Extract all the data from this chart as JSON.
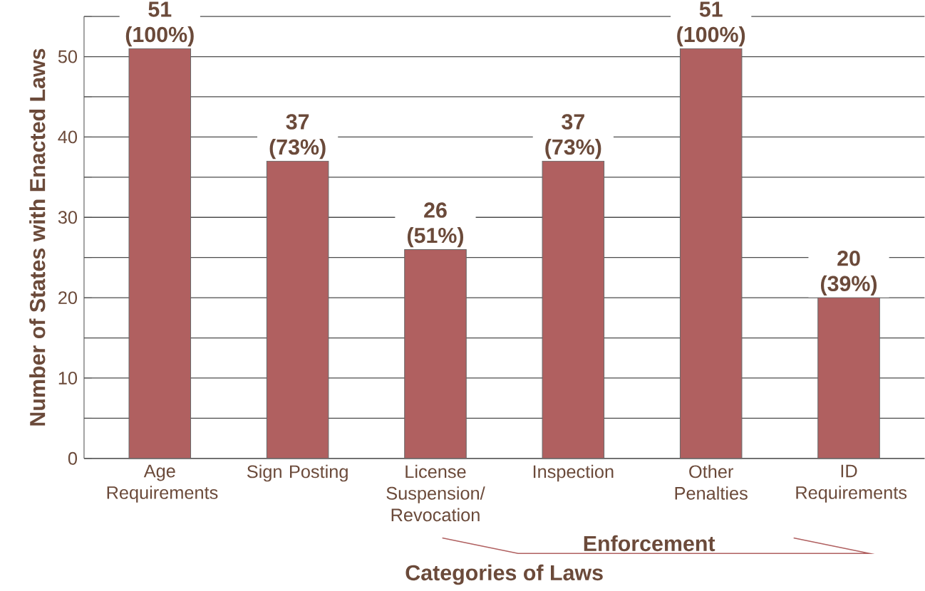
{
  "chart_data": {
    "type": "bar",
    "xlabel": "Categories of Laws",
    "ylabel": "Number of States with Enacted Laws",
    "categories": [
      "Age Requirements",
      "Sign Posting",
      "License Suspension/ Revocation",
      "Inspection",
      "Other Penalties",
      "ID Requirements"
    ],
    "values": [
      51,
      37,
      26,
      37,
      51,
      20
    ],
    "color": "#b06060",
    "value_labels": [
      "51 (100%)",
      "37 (73%)",
      "26 (51%)",
      "37 (73%)",
      "51 (100%)",
      "20 (39%)"
    ],
    "ylim": [
      0,
      55
    ],
    "yticks": [
      0,
      {
        "value": 5,
        "label": null
      },
      10,
      {
        "value": 15,
        "label": null
      },
      20,
      {
        "value": 25,
        "label": null
      },
      30,
      {
        "value": 35,
        "label": null
      },
      40,
      {
        "value": 45,
        "label": null
      },
      50,
      {
        "value": 55,
        "label": null
      }
    ],
    "grid": "y",
    "annotations": [
      "Enforcement"
    ]
  }
}
